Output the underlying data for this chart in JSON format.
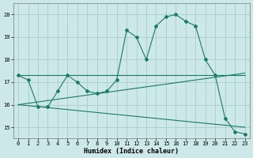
{
  "xlabel": "Humidex (Indice chaleur)",
  "background_color": "#cce8e8",
  "line_color": "#1a7a6a",
  "grid_color": "#aacccc",
  "xlim": [
    -0.5,
    23.5
  ],
  "ylim": [
    14.5,
    20.5
  ],
  "yticks": [
    15,
    16,
    17,
    18,
    19,
    20
  ],
  "xticks": [
    0,
    1,
    2,
    3,
    4,
    5,
    6,
    7,
    8,
    9,
    10,
    11,
    12,
    13,
    14,
    15,
    16,
    17,
    18,
    19,
    20,
    21,
    22,
    23
  ],
  "series1_x": [
    0,
    1,
    2,
    3,
    4,
    5,
    6,
    7,
    8,
    9,
    10,
    11,
    12,
    13,
    14,
    15,
    16,
    17,
    18,
    19,
    20,
    21,
    22,
    23
  ],
  "series1_y": [
    17.3,
    17.1,
    15.9,
    15.9,
    16.6,
    17.3,
    17.0,
    16.6,
    16.5,
    16.6,
    17.1,
    19.3,
    19.0,
    18.0,
    19.5,
    19.9,
    20.0,
    19.7,
    19.5,
    18.0,
    17.3,
    15.4,
    14.8,
    14.7
  ],
  "series2_x": [
    0,
    23
  ],
  "series2_y": [
    16.0,
    17.4
  ],
  "series3_x": [
    0,
    23
  ],
  "series3_y": [
    16.0,
    15.0
  ],
  "series4_x": [
    0,
    23
  ],
  "series4_y": [
    17.3,
    17.3
  ],
  "xlabel_fontsize": 6,
  "tick_fontsize": 5,
  "linewidth": 0.8,
  "markersize": 2.0
}
